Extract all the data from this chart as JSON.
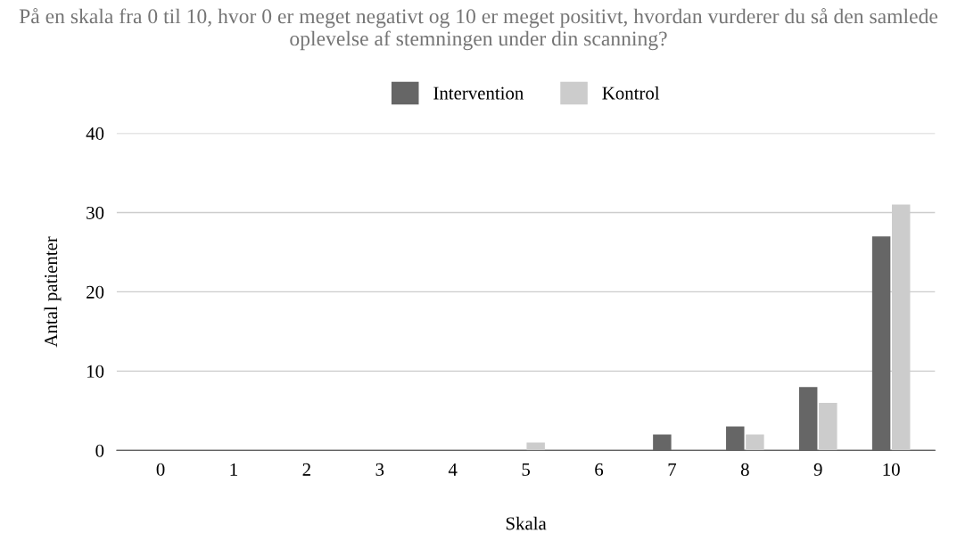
{
  "chart_data": {
    "type": "bar",
    "title": "På en skala fra 0 til 10, hvor 0 er meget negativt og 10 er meget positivt, hvordan vurderer du så den samlede oplevelse af stemningen under din scanning?",
    "xlabel": "Skala",
    "ylabel": "Antal patienter",
    "categories": [
      "0",
      "1",
      "2",
      "3",
      "4",
      "5",
      "6",
      "7",
      "8",
      "9",
      "10"
    ],
    "series": [
      {
        "name": "Intervention",
        "color": "#666666",
        "values": [
          0,
          0,
          0,
          0,
          0,
          0,
          0,
          2,
          3,
          8,
          27
        ]
      },
      {
        "name": "Kontrol",
        "color": "#cccccc",
        "values": [
          0,
          0,
          0,
          0,
          0,
          1,
          0,
          0,
          2,
          6,
          31
        ]
      }
    ],
    "ylim": [
      0,
      40
    ],
    "yticks": [
      0,
      10,
      20,
      30,
      40
    ],
    "grid": "y",
    "legend": "top"
  }
}
